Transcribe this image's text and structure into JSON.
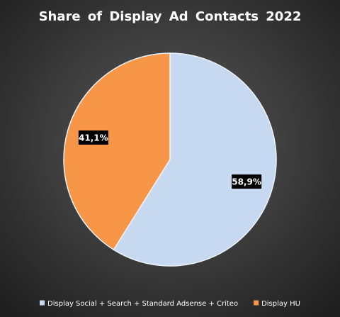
{
  "chart_data": {
    "type": "pie",
    "title": "Share of Display Ad Contacts 2022",
    "categories": [
      "Display Social + Search + Standard Adsense + Criteo",
      "Display HU"
    ],
    "values": [
      58.9,
      41.1
    ],
    "value_labels": [
      "58,9%",
      "41,1%"
    ],
    "colors": [
      "#c6d9f1",
      "#f79646"
    ],
    "legend": "bottom"
  }
}
